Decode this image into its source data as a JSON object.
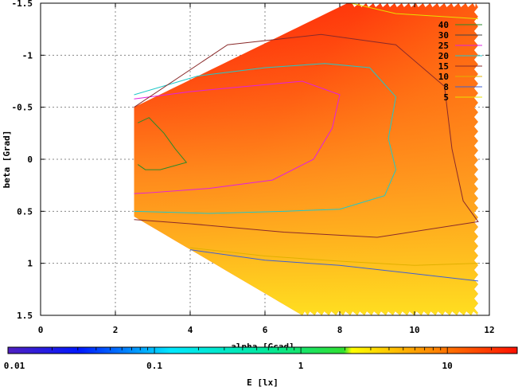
{
  "chart_data": {
    "type": "heatmap",
    "title": "",
    "xlabel": "alpha [Gcad]",
    "ylabel": "beta [Grad]",
    "colorbar_label": "E [lx]",
    "x_range": [
      0,
      12
    ],
    "y_range": [
      -1.5,
      1.5
    ],
    "y_reversed": true,
    "grid": true,
    "legend_placement": "top-right",
    "x_ticks": [
      "0",
      "2",
      "4",
      "6",
      "8",
      "10",
      "12"
    ],
    "x_tick_values": [
      0,
      2,
      4,
      6,
      8,
      10,
      12
    ],
    "y_ticks": [
      "-1.5",
      "-1",
      "-0.5",
      "0",
      "0.5",
      "1",
      "1.5"
    ],
    "y_tick_values": [
      -1.5,
      -1,
      -0.5,
      0,
      0.5,
      1,
      1.5
    ],
    "colorbar_scale": "log",
    "colorbar_range": [
      0.01,
      30
    ],
    "colorbar_ticks": [
      "0.01",
      "0.1",
      "1",
      "10"
    ],
    "colorbar_tick_values": [
      0.01,
      0.1,
      1,
      10
    ],
    "data_region_boundary": {
      "upper": [
        [
          2.5,
          -0.5
        ],
        [
          8.2,
          -1.5
        ],
        [
          11.7,
          -1.5
        ]
      ],
      "lower": [
        [
          2.5,
          0.55
        ],
        [
          7.0,
          1.5
        ],
        [
          11.7,
          1.5
        ]
      ]
    },
    "contour_levels": [
      {
        "level": "40",
        "color": "#2a8a2a",
        "points": [
          [
            2.6,
            -0.35
          ],
          [
            2.9,
            -0.4
          ],
          [
            3.3,
            -0.25
          ],
          [
            3.6,
            -0.1
          ],
          [
            3.9,
            0.03
          ],
          [
            3.6,
            0.06
          ],
          [
            3.2,
            0.1
          ],
          [
            2.8,
            0.1
          ],
          [
            2.6,
            0.05
          ]
        ]
      },
      {
        "level": "30",
        "color": "#444444",
        "points": []
      },
      {
        "level": "25",
        "color": "#e020e0",
        "points": [
          [
            2.5,
            -0.58
          ],
          [
            4.0,
            -0.65
          ],
          [
            5.5,
            -0.7
          ],
          [
            7.0,
            -0.75
          ],
          [
            8.0,
            -0.62
          ],
          [
            7.8,
            -0.3
          ],
          [
            7.3,
            0.0
          ],
          [
            6.2,
            0.2
          ],
          [
            4.5,
            0.28
          ],
          [
            3.0,
            0.32
          ],
          [
            2.5,
            0.33
          ]
        ]
      },
      {
        "level": "20",
        "color": "#20c8c8",
        "points": [
          [
            2.5,
            -0.62
          ],
          [
            4.2,
            -0.8
          ],
          [
            6.0,
            -0.88
          ],
          [
            7.6,
            -0.92
          ],
          [
            8.8,
            -0.88
          ],
          [
            9.5,
            -0.6
          ],
          [
            9.3,
            -0.2
          ],
          [
            9.5,
            0.1
          ],
          [
            9.2,
            0.35
          ],
          [
            8.0,
            0.48
          ],
          [
            6.5,
            0.5
          ],
          [
            4.5,
            0.52
          ],
          [
            2.5,
            0.5
          ]
        ]
      },
      {
        "level": "15",
        "color": "#8a2a2a",
        "points": [
          [
            2.5,
            -0.5
          ],
          [
            5.0,
            -1.1
          ],
          [
            7.5,
            -1.2
          ],
          [
            9.5,
            -1.1
          ],
          [
            10.8,
            -0.7
          ],
          [
            11.0,
            -0.1
          ],
          [
            11.3,
            0.4
          ],
          [
            11.7,
            0.6
          ],
          [
            9.0,
            0.75
          ],
          [
            6.5,
            0.7
          ],
          [
            4.0,
            0.62
          ],
          [
            2.5,
            0.58
          ]
        ]
      },
      {
        "level": "10",
        "color": "#e0b000",
        "points": [
          [
            4.0,
            0.85
          ],
          [
            6.0,
            0.93
          ],
          [
            8.0,
            0.98
          ],
          [
            10.0,
            1.02
          ],
          [
            11.7,
            1.0
          ]
        ]
      },
      {
        "level": "8",
        "color": "#4060d0",
        "points": [
          [
            4.0,
            0.87
          ],
          [
            6.0,
            0.97
          ],
          [
            8.0,
            1.02
          ],
          [
            10.0,
            1.1
          ],
          [
            11.7,
            1.17
          ]
        ]
      },
      {
        "level": "5",
        "color": "#e8e000",
        "points": [
          [
            8.3,
            -1.5
          ],
          [
            9.5,
            -1.4
          ],
          [
            11.7,
            -1.35
          ]
        ]
      }
    ]
  }
}
